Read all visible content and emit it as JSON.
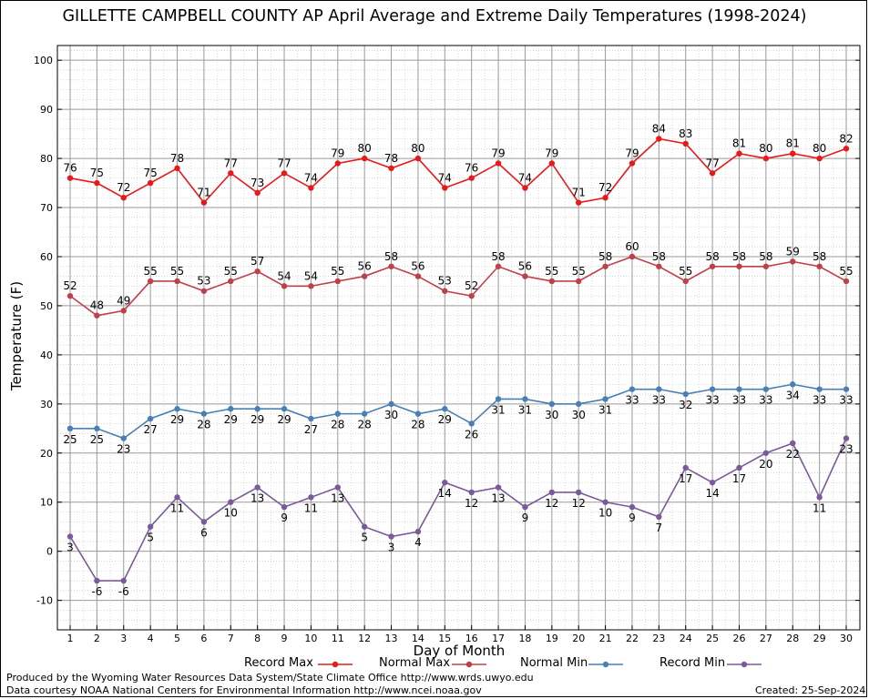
{
  "chart_data": {
    "type": "line",
    "title": "GILLETTE CAMPBELL COUNTY AP April Average and Extreme Daily Temperatures (1998-2024)",
    "xlabel": "Day of Month",
    "ylabel": "Temperature (F)",
    "x": [
      1,
      2,
      3,
      4,
      5,
      6,
      7,
      8,
      9,
      10,
      11,
      12,
      13,
      14,
      15,
      16,
      17,
      18,
      19,
      20,
      21,
      22,
      23,
      24,
      25,
      26,
      27,
      28,
      29,
      30
    ],
    "ylim": [
      -16,
      103
    ],
    "yticks": [
      -10,
      0,
      10,
      20,
      30,
      40,
      50,
      60,
      70,
      80,
      90,
      100
    ],
    "grid": true,
    "legend_position": "bottom",
    "series": [
      {
        "name": "Record Max",
        "color": "#e8191b",
        "label_position": "above",
        "values": [
          76,
          75,
          72,
          75,
          78,
          71,
          77,
          73,
          77,
          74,
          79,
          80,
          78,
          80,
          74,
          76,
          79,
          74,
          79,
          71,
          72,
          79,
          84,
          83,
          77,
          81,
          80,
          81,
          80,
          82
        ]
      },
      {
        "name": "Normal Max",
        "color": "#c0404a",
        "label_position": "above",
        "values": [
          52,
          48,
          49,
          55,
          55,
          53,
          55,
          57,
          54,
          54,
          55,
          56,
          58,
          56,
          53,
          52,
          58,
          56,
          55,
          55,
          58,
          60,
          58,
          55,
          58,
          58,
          58,
          59,
          58,
          55
        ]
      },
      {
        "name": "Normal Min",
        "color": "#4a7fb5",
        "label_position": "below",
        "values": [
          25,
          25,
          23,
          27,
          29,
          28,
          29,
          29,
          29,
          27,
          28,
          28,
          30,
          28,
          29,
          26,
          31,
          31,
          30,
          30,
          31,
          33,
          33,
          32,
          33,
          33,
          33,
          34,
          33,
          33
        ]
      },
      {
        "name": "Record Min",
        "color": "#7a5a9a",
        "label_position": "below",
        "values": [
          3,
          -6,
          -6,
          5,
          11,
          6,
          10,
          13,
          9,
          11,
          13,
          5,
          3,
          4,
          14,
          12,
          13,
          9,
          12,
          12,
          10,
          9,
          7,
          17,
          14,
          17,
          20,
          22,
          11,
          23
        ]
      }
    ]
  },
  "footer": {
    "produced_by": "Produced by the Wyoming Water Resources Data System/State Climate Office http://www.wrds.uwyo.edu",
    "data_courtesy": "Data courtesy NOAA National Centers for Environmental Information http://www.ncei.noaa.gov",
    "created": "Created:  25-Sep-2024"
  }
}
